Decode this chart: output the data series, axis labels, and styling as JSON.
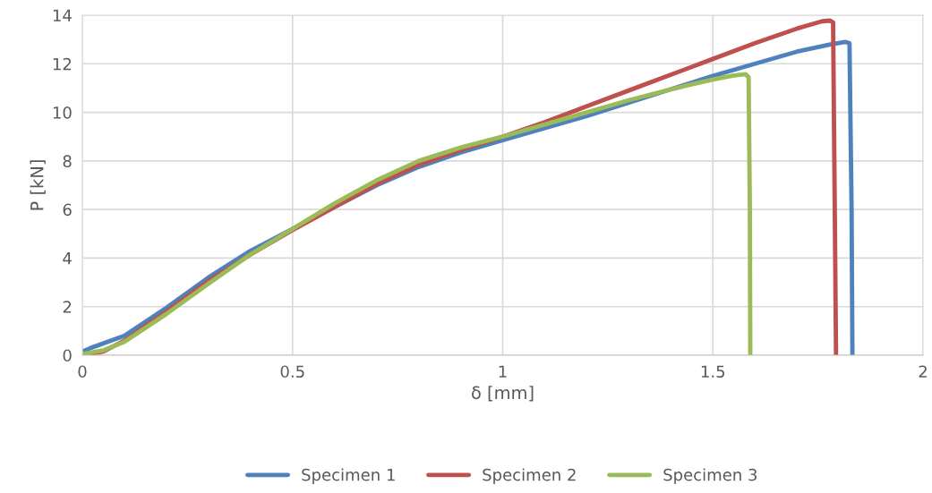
{
  "chart_data": {
    "type": "line",
    "xlabel": "δ [mm]",
    "ylabel": "P [kN]",
    "xlim": [
      0,
      2
    ],
    "xticks": [
      0,
      0.5,
      1,
      1.5,
      2
    ],
    "ylim": [
      0,
      14
    ],
    "yticks": [
      0,
      2,
      4,
      6,
      8,
      10,
      12,
      14
    ],
    "grid": true,
    "legend": "bottom",
    "marker": "none",
    "line_style": "solid",
    "series": [
      {
        "name": "Specimen 1",
        "color": "#4f81bd",
        "x": [
          0,
          0.02,
          0.1,
          0.2,
          0.3,
          0.4,
          0.5,
          0.6,
          0.7,
          0.8,
          0.9,
          1.0,
          1.1,
          1.2,
          1.3,
          1.4,
          1.5,
          1.6,
          1.7,
          1.78,
          1.815,
          1.825,
          1.83,
          1.832
        ],
        "values": [
          0.15,
          0.3,
          0.8,
          1.95,
          3.2,
          4.3,
          5.2,
          6.1,
          7.0,
          7.75,
          8.35,
          8.85,
          9.35,
          9.85,
          10.4,
          10.95,
          11.5,
          12.0,
          12.5,
          12.8,
          12.9,
          12.85,
          6,
          0
        ]
      },
      {
        "name": "Specimen 2",
        "color": "#c0504d",
        "x": [
          0,
          0.05,
          0.1,
          0.2,
          0.3,
          0.4,
          0.5,
          0.6,
          0.7,
          0.8,
          0.9,
          1.0,
          1.1,
          1.2,
          1.3,
          1.4,
          1.5,
          1.6,
          1.7,
          1.76,
          1.778,
          1.786,
          1.79,
          1.793
        ],
        "values": [
          0,
          0.15,
          0.6,
          1.8,
          3.05,
          4.15,
          5.15,
          6.1,
          7.05,
          7.85,
          8.45,
          9.0,
          9.6,
          10.25,
          10.9,
          11.55,
          12.2,
          12.85,
          13.45,
          13.75,
          13.78,
          13.7,
          6,
          0
        ]
      },
      {
        "name": "Specimen 3",
        "color": "#9bbb59",
        "x": [
          0,
          0.05,
          0.1,
          0.2,
          0.3,
          0.4,
          0.5,
          0.6,
          0.7,
          0.8,
          0.9,
          1.0,
          1.1,
          1.2,
          1.3,
          1.4,
          1.5,
          1.55,
          1.578,
          1.585,
          1.588,
          1.589
        ],
        "values": [
          0.05,
          0.2,
          0.55,
          1.7,
          2.95,
          4.15,
          5.2,
          6.25,
          7.2,
          8.0,
          8.55,
          9.0,
          9.5,
          10.0,
          10.5,
          10.95,
          11.35,
          11.52,
          11.57,
          11.45,
          6,
          0
        ]
      }
    ]
  }
}
